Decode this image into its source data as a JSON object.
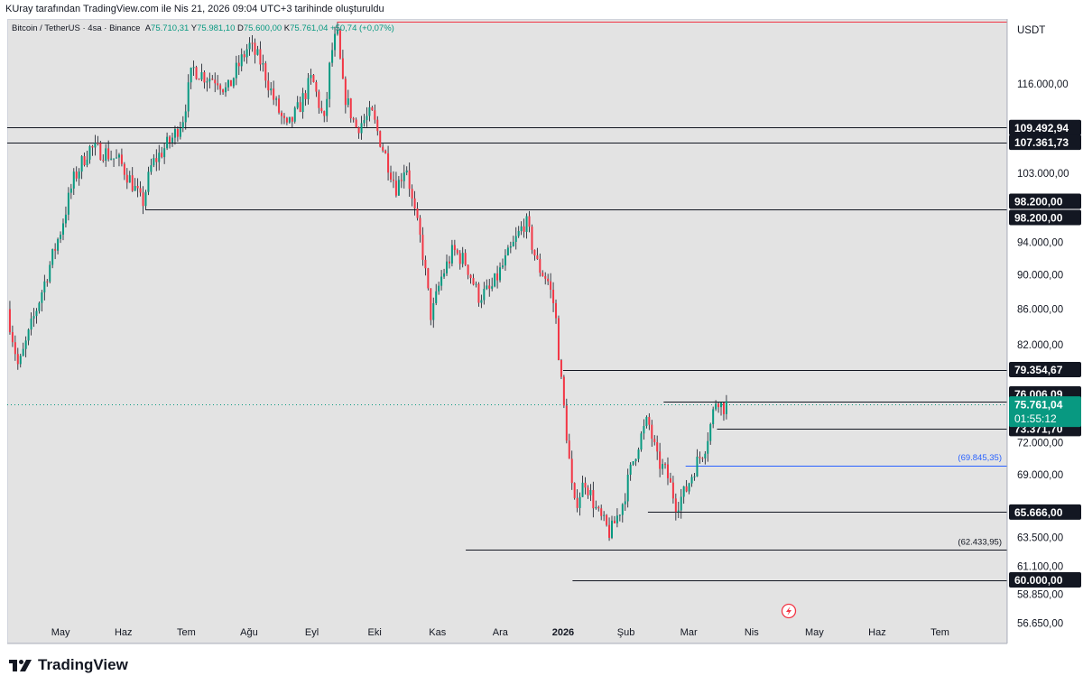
{
  "header": {
    "credit": "KUray tarafından TradingView.com ile Nis 21, 2026 09:04 UTC+3 tarihinde oluşturuldu"
  },
  "symbol": {
    "name": "Bitcoin / TetherUS · 4sa · Binance",
    "open_label": "A",
    "open": "75.710,31",
    "high_label": "Y",
    "high": "75.981,10",
    "low_label": "D",
    "low": "75.600,00",
    "close_label": "K",
    "close": "75.761,04",
    "change": "+50,74 (+0,07%)"
  },
  "footer": {
    "brand": "TradingView"
  },
  "colors": {
    "up": "#089981",
    "down": "#f23645",
    "tag_dark": "#131722",
    "tag_current": "#089981",
    "blue_line": "#2962ff",
    "background": "#e3e3e3"
  },
  "chart_data": {
    "type": "candlestick",
    "currency_label": "USDT",
    "y_scale": "log",
    "ylim": [
      56000,
      126500
    ],
    "y_ticks": [
      {
        "value": 116000,
        "label": "116.000,00"
      },
      {
        "value": 103000,
        "label": "103.000,00"
      },
      {
        "value": 94000,
        "label": "94.000,00"
      },
      {
        "value": 90000,
        "label": "90.000,00"
      },
      {
        "value": 86000,
        "label": "86.000,00"
      },
      {
        "value": 82000,
        "label": "82.000,00"
      },
      {
        "value": 72000,
        "label": "72.000,00"
      },
      {
        "value": 69000,
        "label": "69.000,00"
      },
      {
        "value": 63500,
        "label": "63.500,00"
      },
      {
        "value": 61100,
        "label": "61.100,00"
      },
      {
        "value": 58850,
        "label": "58.850,00"
      },
      {
        "value": 56650,
        "label": "56.650,00"
      }
    ],
    "x_labels": [
      {
        "label": "May",
        "bold": false
      },
      {
        "label": "Haz",
        "bold": false
      },
      {
        "label": "Tem",
        "bold": false
      },
      {
        "label": "Ağu",
        "bold": false
      },
      {
        "label": "Eyl",
        "bold": false
      },
      {
        "label": "Eki",
        "bold": false
      },
      {
        "label": "Kas",
        "bold": false
      },
      {
        "label": "Ara",
        "bold": false
      },
      {
        "label": "2026",
        "bold": true
      },
      {
        "label": "Şub",
        "bold": false
      },
      {
        "label": "Mar",
        "bold": false
      },
      {
        "label": "Nis",
        "bold": false
      },
      {
        "label": "May",
        "bold": false
      },
      {
        "label": "Haz",
        "bold": false
      },
      {
        "label": "Tem",
        "bold": false
      }
    ],
    "series_path": [
      [
        0.0,
        86000
      ],
      [
        0.18,
        79500
      ],
      [
        0.4,
        84500
      ],
      [
        0.65,
        90500
      ],
      [
        0.85,
        95500
      ],
      [
        1.05,
        102000
      ],
      [
        1.3,
        106500
      ],
      [
        1.55,
        106000
      ],
      [
        1.8,
        104500
      ],
      [
        2.0,
        101500
      ],
      [
        2.15,
        98800
      ],
      [
        2.3,
        104200
      ],
      [
        2.5,
        106500
      ],
      [
        2.65,
        108200
      ],
      [
        2.8,
        111000
      ],
      [
        2.95,
        118500
      ],
      [
        3.15,
        117200
      ],
      [
        3.35,
        116800
      ],
      [
        3.5,
        114800
      ],
      [
        3.65,
        118200
      ],
      [
        3.85,
        122200
      ],
      [
        4.05,
        119200
      ],
      [
        4.25,
        113500
      ],
      [
        4.45,
        109200
      ],
      [
        4.65,
        112500
      ],
      [
        4.85,
        117000
      ],
      [
        5.05,
        110000
      ],
      [
        5.15,
        120500
      ],
      [
        5.25,
        124200
      ],
      [
        5.35,
        115000
      ],
      [
        5.55,
        109500
      ],
      [
        5.8,
        111500
      ],
      [
        6.0,
        106000
      ],
      [
        6.2,
        101000
      ],
      [
        6.35,
        104500
      ],
      [
        6.45,
        99000
      ],
      [
        6.6,
        93500
      ],
      [
        6.75,
        85000
      ],
      [
        6.9,
        89500
      ],
      [
        7.1,
        93000
      ],
      [
        7.3,
        91500
      ],
      [
        7.5,
        87500
      ],
      [
        7.7,
        88200
      ],
      [
        7.85,
        90500
      ],
      [
        8.05,
        93500
      ],
      [
        8.25,
        96800
      ],
      [
        8.45,
        91000
      ],
      [
        8.6,
        89500
      ],
      [
        8.72,
        86000
      ],
      [
        8.82,
        78000
      ],
      [
        8.92,
        72000
      ],
      [
        9.02,
        66000
      ],
      [
        9.2,
        68500
      ],
      [
        9.4,
        65500
      ],
      [
        9.6,
        63800
      ],
      [
        9.8,
        66500
      ],
      [
        9.95,
        70000
      ],
      [
        10.05,
        72000
      ],
      [
        10.2,
        74200
      ],
      [
        10.35,
        70300
      ],
      [
        10.5,
        69100
      ],
      [
        10.65,
        66300
      ],
      [
        10.8,
        67500
      ],
      [
        10.95,
        69800
      ],
      [
        11.1,
        71500
      ],
      [
        11.2,
        73800
      ],
      [
        11.3,
        76800
      ],
      [
        11.38,
        75400
      ],
      [
        11.45,
        75761
      ]
    ],
    "last_price": 75761.04,
    "horizontal_lines": [
      {
        "value": 126000,
        "color": "#f23645",
        "start_month": 5.25
      },
      {
        "value": 109492.94,
        "color": "#131722",
        "start_month": 0
      },
      {
        "value": 107361.73,
        "color": "#131722",
        "start_month": 0
      },
      {
        "value": 98200,
        "color": "#131722",
        "start_month": 2.2
      },
      {
        "value": 79354.67,
        "color": "#131722",
        "start_month": 8.85
      },
      {
        "value": 76006.09,
        "color": "#131722",
        "start_month": 10.45
      },
      {
        "value": 73371.7,
        "color": "#131722",
        "start_month": 11.3
      },
      {
        "value": 69845.35,
        "color": "#2962ff",
        "start_month": 10.8
      },
      {
        "value": 65666,
        "color": "#131722",
        "start_month": 10.2
      },
      {
        "value": 62433.95,
        "color": "#131722",
        "start_month": 7.3
      },
      {
        "value": 60000,
        "color": "#131722",
        "start_month": 9.0
      }
    ],
    "price_tags": [
      {
        "value": 109492.94,
        "label": "109.492,94",
        "style": "dark"
      },
      {
        "value": 107361.73,
        "label": "107.361,73",
        "style": "dark"
      },
      {
        "value": 98200,
        "offset": -1,
        "label": "98.200,00",
        "style": "dark"
      },
      {
        "value": 98200,
        "offset": 1,
        "label": "98.200,00",
        "style": "dark"
      },
      {
        "value": 79354.67,
        "label": "79.354,67",
        "style": "dark"
      },
      {
        "value": 76006.09,
        "offset": -1,
        "label": "76.006,09",
        "style": "dark"
      },
      {
        "value": 73371.7,
        "label": "73.371,70",
        "style": "dark"
      },
      {
        "value": 65666,
        "label": "65.666,00",
        "style": "dark"
      },
      {
        "value": 60000,
        "label": "60.000,00",
        "style": "dark"
      }
    ],
    "current_tag": {
      "value": 75761.04,
      "label": "75.761,04",
      "countdown": "01:55:12"
    },
    "annotations": [
      {
        "value": 69845.35,
        "label": "(69.845,35)",
        "color": "#2962ff"
      },
      {
        "value": 62433.95,
        "label": "(62.433,95)",
        "color": "#131722"
      }
    ]
  }
}
